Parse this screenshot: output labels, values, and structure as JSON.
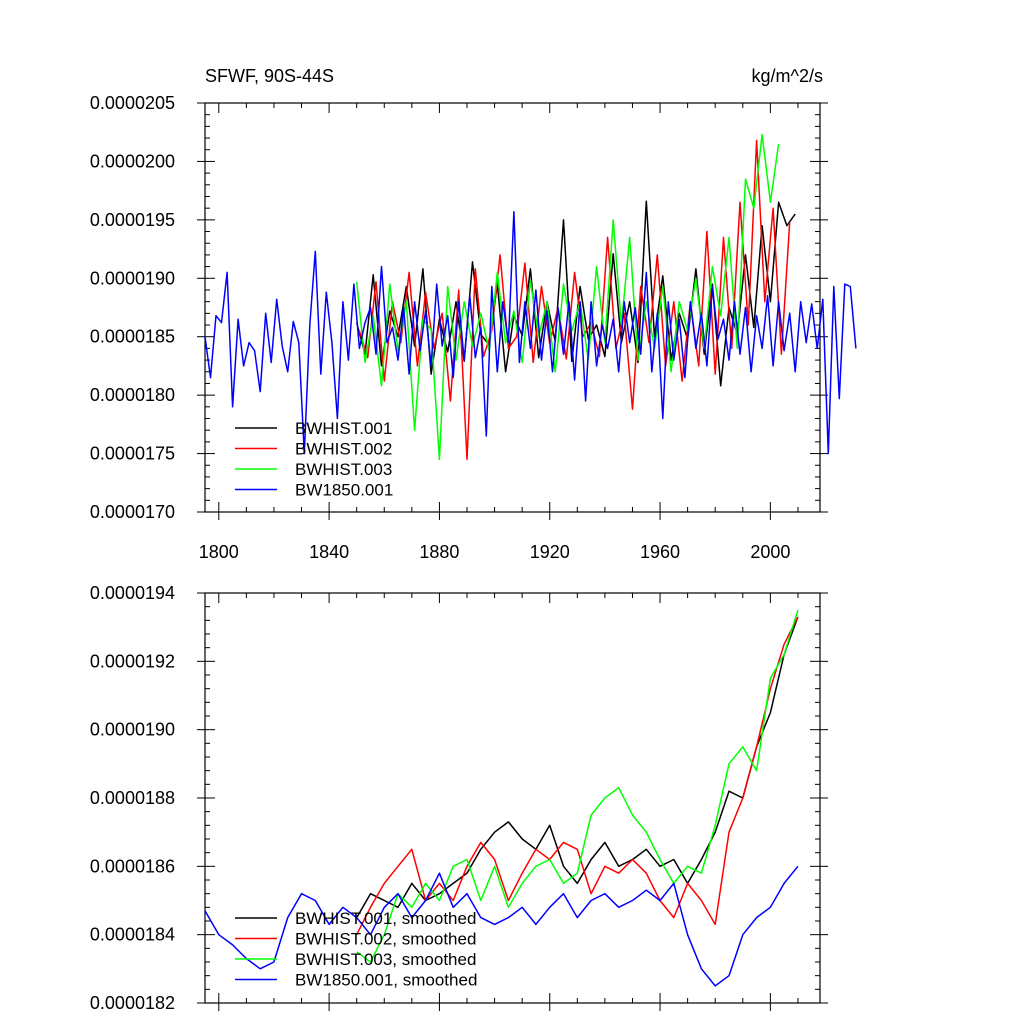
{
  "chart_data": [
    {
      "type": "line",
      "title": "SFWF, 90S-44S",
      "units": "kg/m^2/s",
      "xlim": [
        1795,
        2018
      ],
      "ylim": [
        1.7e-05,
        2.05e-05
      ],
      "xticks": [
        1800,
        1840,
        1880,
        1920,
        1960,
        2000
      ],
      "xtick_labels": [
        "1800",
        "1840",
        "1880",
        "1920",
        "1960",
        "2000"
      ],
      "yticks": [
        1.7e-05,
        1.75e-05,
        1.8e-05,
        1.85e-05,
        1.9e-05,
        1.95e-05,
        2e-05,
        2.05e-05
      ],
      "ytick_labels": [
        "0.0000170",
        "0.0000175",
        "0.0000180",
        "0.0000185",
        "0.0000190",
        "0.0000195",
        "0.0000200",
        "0.0000205"
      ],
      "legend_position": "bottom-left",
      "series": [
        {
          "name": "BWHIST.001",
          "color": "#000000",
          "x_start": 1850,
          "x_step": 3,
          "values": [
            1.862e-05,
            1.835e-05,
            1.903e-05,
            1.825e-05,
            1.872e-05,
            1.85e-05,
            1.893e-05,
            1.842e-05,
            1.908e-05,
            1.818e-05,
            1.865e-05,
            1.837e-05,
            1.88e-05,
            1.829e-05,
            1.914e-05,
            1.852e-05,
            1.843e-05,
            1.895e-05,
            1.82e-05,
            1.868e-05,
            1.851e-05,
            1.908e-05,
            1.832e-05,
            1.88e-05,
            1.846e-05,
            1.95e-05,
            1.829e-05,
            1.893e-05,
            1.848e-05,
            1.86e-05,
            1.833e-05,
            1.921e-05,
            1.845e-05,
            1.88e-05,
            1.828e-05,
            1.966e-05,
            1.85e-05,
            1.902e-05,
            1.83e-05,
            1.87e-05,
            1.848e-05,
            1.908e-05,
            1.835e-05,
            1.895e-05,
            1.808e-05,
            1.875e-05,
            1.852e-05,
            1.92e-05,
            1.858e-05,
            1.945e-05,
            1.88e-05,
            1.965e-05,
            1.945e-05,
            1.955e-05
          ]
        },
        {
          "name": "BWHIST.002",
          "color": "#ff0000",
          "x_start": 1851,
          "x_step": 3,
          "values": [
            1.855e-05,
            1.832e-05,
            1.897e-05,
            1.812e-05,
            1.88e-05,
            1.845e-05,
            1.905e-05,
            1.825e-05,
            1.888e-05,
            1.84e-05,
            1.87e-05,
            1.795e-05,
            1.89e-05,
            1.745e-05,
            1.908e-05,
            1.833e-05,
            1.855e-05,
            1.92e-05,
            1.84e-05,
            1.85e-05,
            1.913e-05,
            1.828e-05,
            1.893e-05,
            1.844e-05,
            1.875e-05,
            1.831e-05,
            1.905e-05,
            1.85e-05,
            1.862e-05,
            1.833e-05,
            1.935e-05,
            1.84e-05,
            1.87e-05,
            1.788e-05,
            1.893e-05,
            1.845e-05,
            1.92e-05,
            1.825e-05,
            1.88e-05,
            1.812e-05,
            1.88e-05,
            1.825e-05,
            1.94e-05,
            1.818e-05,
            1.935e-05,
            1.84e-05,
            1.965e-05,
            1.86e-05,
            2.018e-05,
            1.88e-05,
            1.96e-05,
            1.835e-05,
            1.948e-05
          ]
        },
        {
          "name": "BWHIST.003",
          "color": "#00ff00",
          "x_start": 1850,
          "x_step": 3,
          "values": [
            1.897e-05,
            1.828e-05,
            1.868e-05,
            1.808e-05,
            1.895e-05,
            1.838e-05,
            1.88e-05,
            1.77e-05,
            1.865e-05,
            1.856e-05,
            1.745e-05,
            1.893e-05,
            1.83e-05,
            1.88e-05,
            1.842e-05,
            1.87e-05,
            1.838e-05,
            1.905e-05,
            1.845e-05,
            1.872e-05,
            1.828e-05,
            1.898e-05,
            1.85e-05,
            1.88e-05,
            1.82e-05,
            1.895e-05,
            1.855e-05,
            1.88e-05,
            1.83e-05,
            1.91e-05,
            1.845e-05,
            1.95e-05,
            1.86e-05,
            1.935e-05,
            1.83e-05,
            1.88e-05,
            1.84e-05,
            1.893e-05,
            1.82e-05,
            1.88e-05,
            1.855e-05,
            1.9e-05,
            1.84e-05,
            1.91e-05,
            1.868e-05,
            1.935e-05,
            1.84e-05,
            1.985e-05,
            1.96e-05,
            2.023e-05,
            1.965e-05,
            2.015e-05
          ]
        },
        {
          "name": "BW1850.001",
          "color": "#0000ff",
          "x_start": 1795,
          "x_step": 2,
          "values": [
            1.85e-05,
            1.815e-05,
            1.868e-05,
            1.862e-05,
            1.905e-05,
            1.79e-05,
            1.865e-05,
            1.825e-05,
            1.845e-05,
            1.838e-05,
            1.803e-05,
            1.87e-05,
            1.828e-05,
            1.882e-05,
            1.842e-05,
            1.82e-05,
            1.863e-05,
            1.845e-05,
            1.75e-05,
            1.86e-05,
            1.923e-05,
            1.818e-05,
            1.888e-05,
            1.845e-05,
            1.78e-05,
            1.88e-05,
            1.83e-05,
            1.895e-05,
            1.84e-05,
            1.862e-05,
            1.875e-05,
            1.835e-05,
            1.91e-05,
            1.845e-05,
            1.858e-05,
            1.83e-05,
            1.875e-05,
            1.818e-05,
            1.88e-05,
            1.838e-05,
            1.872e-05,
            1.825e-05,
            1.895e-05,
            1.842e-05,
            1.868e-05,
            1.815e-05,
            1.88e-05,
            1.83e-05,
            1.885e-05,
            1.832e-05,
            1.858e-05,
            1.765e-05,
            1.893e-05,
            1.82e-05,
            1.88e-05,
            1.845e-05,
            1.957e-05,
            1.828e-05,
            1.88e-05,
            1.84e-05,
            1.89e-05,
            1.83e-05,
            1.872e-05,
            1.82e-05,
            1.875e-05,
            1.835e-05,
            1.88e-05,
            1.813e-05,
            1.88e-05,
            1.795e-05,
            1.88e-05,
            1.825e-05,
            1.86e-05,
            1.84e-05,
            1.865e-05,
            1.82e-05,
            1.88e-05,
            1.845e-05,
            1.875e-05,
            1.835e-05,
            1.905e-05,
            1.82e-05,
            1.87e-05,
            1.78e-05,
            1.88e-05,
            1.83e-05,
            1.865e-05,
            1.815e-05,
            1.88e-05,
            1.84e-05,
            1.87e-05,
            1.825e-05,
            1.893e-05,
            1.848e-05,
            1.865e-05,
            1.83e-05,
            1.88e-05,
            1.835e-05,
            1.875e-05,
            1.82e-05,
            1.868e-05,
            1.84e-05,
            1.885e-05,
            1.825e-05,
            1.88e-05,
            1.838e-05,
            1.87e-05,
            1.82e-05,
            1.88e-05,
            1.845e-05,
            1.878e-05,
            1.84e-05,
            1.882e-05,
            1.75e-05,
            1.893e-05,
            1.797e-05,
            1.895e-05,
            1.893e-05,
            1.84e-05
          ]
        }
      ]
    },
    {
      "type": "line",
      "title": "",
      "units": "",
      "xlim": [
        1795,
        2018
      ],
      "ylim": [
        1.82e-05,
        1.94e-05
      ],
      "xticks": [
        1800,
        1840,
        1880,
        1920,
        1960,
        2000
      ],
      "yticks": [
        1.82e-05,
        1.84e-05,
        1.86e-05,
        1.88e-05,
        1.9e-05,
        1.92e-05,
        1.94e-05
      ],
      "ytick_labels": [
        "0.0000182",
        "0.0000184",
        "0.0000186",
        "0.0000188",
        "0.0000190",
        "0.0000192",
        "0.0000194"
      ],
      "legend_position": "bottom-left",
      "series": [
        {
          "name": "BWHIST.001, smoothed",
          "color": "#000000",
          "x": [
            1850,
            1855,
            1860,
            1865,
            1870,
            1875,
            1880,
            1885,
            1890,
            1895,
            1900,
            1905,
            1910,
            1915,
            1920,
            1925,
            1930,
            1935,
            1940,
            1945,
            1950,
            1955,
            1960,
            1965,
            1970,
            1975,
            1980,
            1985,
            1990,
            1995,
            2000,
            2005,
            2010
          ],
          "values": [
            1.845e-05,
            1.852e-05,
            1.85e-05,
            1.848e-05,
            1.855e-05,
            1.85e-05,
            1.852e-05,
            1.855e-05,
            1.858e-05,
            1.865e-05,
            1.87e-05,
            1.873e-05,
            1.868e-05,
            1.865e-05,
            1.872e-05,
            1.86e-05,
            1.855e-05,
            1.862e-05,
            1.867e-05,
            1.86e-05,
            1.862e-05,
            1.865e-05,
            1.86e-05,
            1.862e-05,
            1.855e-05,
            1.862e-05,
            1.87e-05,
            1.882e-05,
            1.88e-05,
            1.895e-05,
            1.905e-05,
            1.922e-05,
            1.933e-05
          ]
        },
        {
          "name": "BWHIST.002, smoothed",
          "color": "#ff0000",
          "x": [
            1850,
            1855,
            1860,
            1865,
            1870,
            1875,
            1880,
            1885,
            1890,
            1895,
            1900,
            1905,
            1910,
            1915,
            1920,
            1925,
            1930,
            1935,
            1940,
            1945,
            1950,
            1955,
            1960,
            1965,
            1970,
            1975,
            1980,
            1985,
            1990,
            1995,
            2000,
            2005,
            2010
          ],
          "values": [
            1.84e-05,
            1.848e-05,
            1.855e-05,
            1.86e-05,
            1.865e-05,
            1.85e-05,
            1.855e-05,
            1.85e-05,
            1.86e-05,
            1.867e-05,
            1.862e-05,
            1.85e-05,
            1.858e-05,
            1.865e-05,
            1.862e-05,
            1.867e-05,
            1.865e-05,
            1.852e-05,
            1.86e-05,
            1.858e-05,
            1.862e-05,
            1.858e-05,
            1.85e-05,
            1.845e-05,
            1.855e-05,
            1.85e-05,
            1.843e-05,
            1.87e-05,
            1.88e-05,
            1.895e-05,
            1.912e-05,
            1.925e-05,
            1.933e-05
          ]
        },
        {
          "name": "BWHIST.003, smoothed",
          "color": "#00ff00",
          "x": [
            1850,
            1855,
            1860,
            1865,
            1870,
            1875,
            1880,
            1885,
            1890,
            1895,
            1900,
            1905,
            1910,
            1915,
            1920,
            1925,
            1930,
            1935,
            1940,
            1945,
            1950,
            1955,
            1960,
            1965,
            1970,
            1975,
            1980,
            1985,
            1990,
            1995,
            2000,
            2005,
            2010
          ],
          "values": [
            1.835e-05,
            1.832e-05,
            1.84e-05,
            1.852e-05,
            1.848e-05,
            1.855e-05,
            1.85e-05,
            1.86e-05,
            1.862e-05,
            1.85e-05,
            1.86e-05,
            1.848e-05,
            1.855e-05,
            1.86e-05,
            1.862e-05,
            1.855e-05,
            1.858e-05,
            1.875e-05,
            1.88e-05,
            1.883e-05,
            1.875e-05,
            1.87e-05,
            1.862e-05,
            1.855e-05,
            1.86e-05,
            1.858e-05,
            1.872e-05,
            1.89e-05,
            1.895e-05,
            1.888e-05,
            1.915e-05,
            1.922e-05,
            1.935e-05
          ]
        },
        {
          "name": "BW1850.001, smoothed",
          "color": "#0000ff",
          "x": [
            1795,
            1800,
            1805,
            1810,
            1815,
            1820,
            1825,
            1830,
            1835,
            1840,
            1845,
            1850,
            1855,
            1860,
            1865,
            1870,
            1875,
            1880,
            1885,
            1890,
            1895,
            1900,
            1905,
            1910,
            1915,
            1920,
            1925,
            1930,
            1935,
            1940,
            1945,
            1950,
            1955,
            1960,
            1965,
            1970,
            1975,
            1980,
            1985,
            1990,
            1995,
            2000,
            2005,
            2010
          ],
          "values": [
            1.847e-05,
            1.84e-05,
            1.837e-05,
            1.833e-05,
            1.83e-05,
            1.832e-05,
            1.845e-05,
            1.852e-05,
            1.85e-05,
            1.843e-05,
            1.848e-05,
            1.845e-05,
            1.84e-05,
            1.848e-05,
            1.852e-05,
            1.845e-05,
            1.85e-05,
            1.858e-05,
            1.848e-05,
            1.852e-05,
            1.845e-05,
            1.843e-05,
            1.845e-05,
            1.848e-05,
            1.843e-05,
            1.848e-05,
            1.852e-05,
            1.845e-05,
            1.85e-05,
            1.852e-05,
            1.848e-05,
            1.85e-05,
            1.853e-05,
            1.85e-05,
            1.855e-05,
            1.84e-05,
            1.83e-05,
            1.825e-05,
            1.828e-05,
            1.84e-05,
            1.845e-05,
            1.848e-05,
            1.855e-05,
            1.86e-05
          ]
        }
      ]
    }
  ]
}
